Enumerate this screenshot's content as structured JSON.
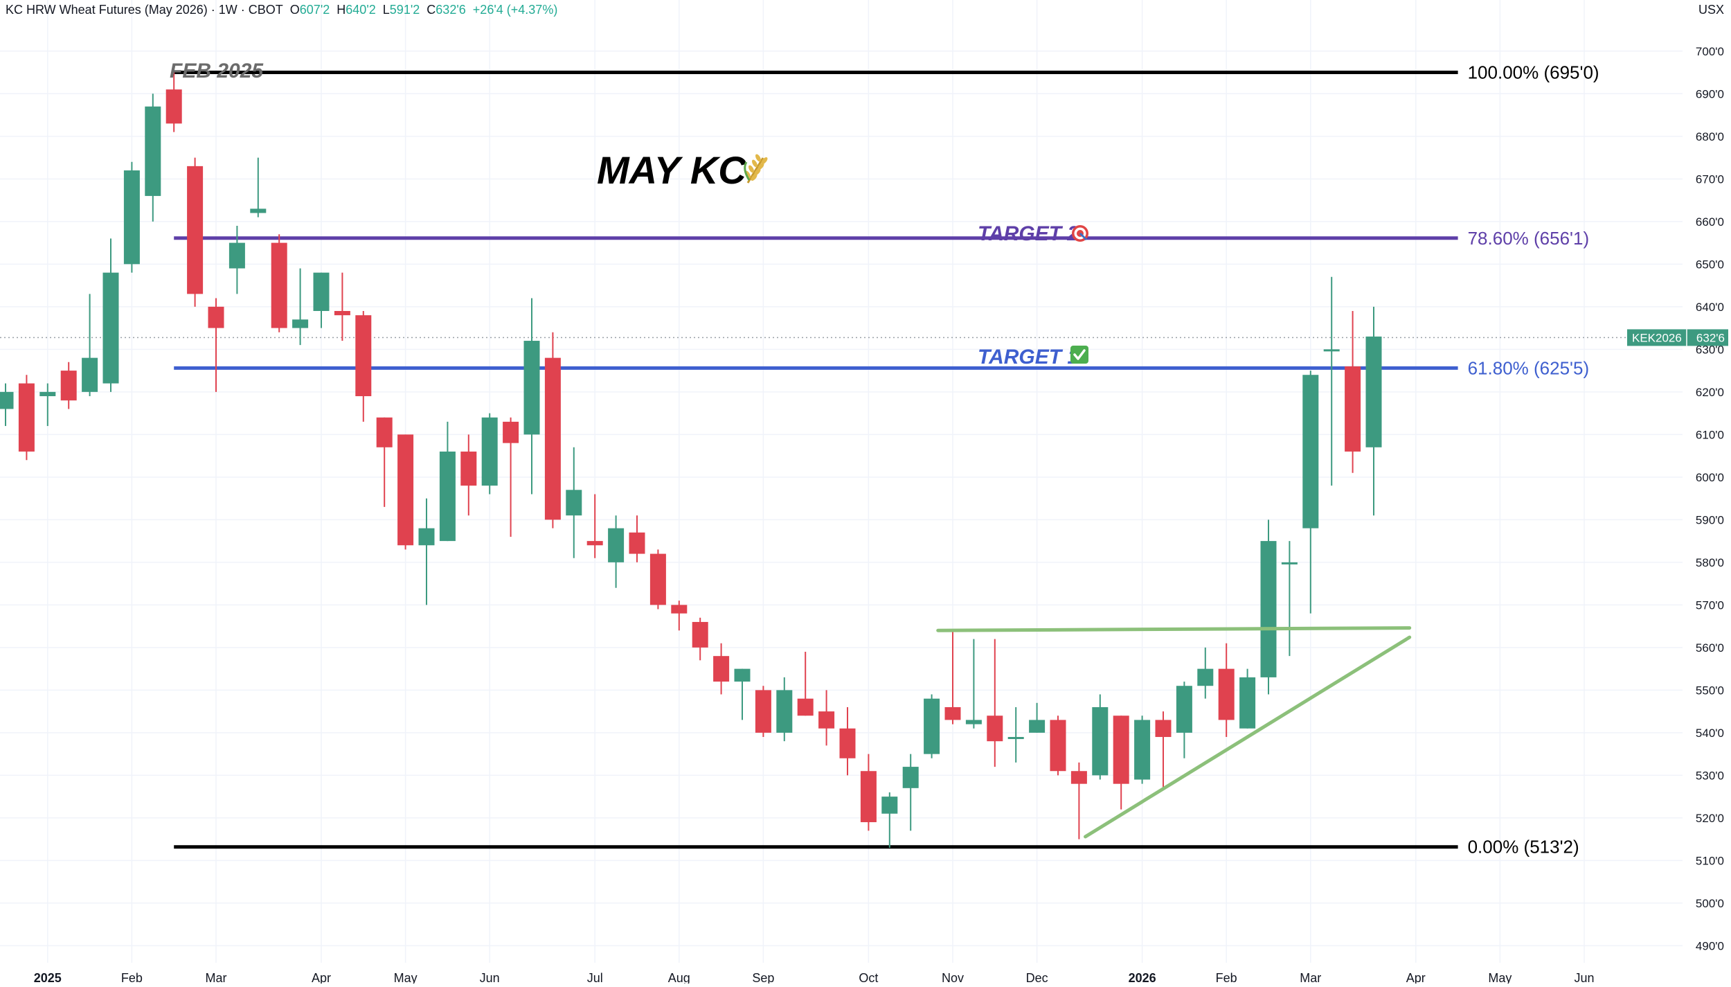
{
  "header": {
    "symbol_title": "KC HRW Wheat Futures (May 2026) · 1W · CBOT",
    "open_label": "O",
    "open": "607'2",
    "high_label": "H",
    "high": "640'2",
    "low_label": "L",
    "low": "591'2",
    "close_label": "C",
    "close": "632'6",
    "change": "+26'4 (+4.37%)",
    "currency": "USX"
  },
  "colors": {
    "up": "#3d9a80",
    "down": "#e0424f",
    "fib_extreme": "#000000",
    "target2": "#5e3fa8",
    "target1": "#3e5fcf",
    "trendline": "#8cc07a",
    "axis_text": "#131722",
    "grid": "#f0f3fa",
    "price_tag": "#3d9a80"
  },
  "chart_data": {
    "type": "candlestick",
    "interval": "1W",
    "ylim": [
      486,
      712
    ],
    "y_ticks": [
      "490'0",
      "500'0",
      "510'0",
      "520'0",
      "530'0",
      "540'0",
      "550'0",
      "560'0",
      "570'0",
      "580'0",
      "590'0",
      "600'0",
      "610'0",
      "620'0",
      "630'0",
      "640'0",
      "650'0",
      "660'0",
      "670'0",
      "680'0",
      "690'0",
      "700'0"
    ],
    "x_ticks": [
      {
        "label": "2025",
        "week": 2
      },
      {
        "label": "Feb",
        "week": 6
      },
      {
        "label": "Mar",
        "week": 10
      },
      {
        "label": "Apr",
        "week": 15
      },
      {
        "label": "May",
        "week": 19
      },
      {
        "label": "Jun",
        "week": 23
      },
      {
        "label": "Jul",
        "week": 28
      },
      {
        "label": "Aug",
        "week": 32
      },
      {
        "label": "Sep",
        "week": 36
      },
      {
        "label": "Oct",
        "week": 41
      },
      {
        "label": "Nov",
        "week": 45
      },
      {
        "label": "Dec",
        "week": 49
      },
      {
        "label": "2026",
        "week": 54
      },
      {
        "label": "Feb",
        "week": 58
      },
      {
        "label": "Mar",
        "week": 62
      },
      {
        "label": "Apr",
        "week": 67
      },
      {
        "label": "May",
        "week": 71
      },
      {
        "label": "Jun",
        "week": 75
      }
    ],
    "week_range": [
      0,
      82
    ],
    "candles": [
      {
        "w": 0,
        "o": 616,
        "h": 622,
        "l": 612,
        "c": 620
      },
      {
        "w": 1,
        "o": 622,
        "h": 624,
        "l": 604,
        "c": 606
      },
      {
        "w": 2,
        "o": 619,
        "h": 622,
        "l": 612,
        "c": 620
      },
      {
        "w": 3,
        "o": 625,
        "h": 627,
        "l": 616,
        "c": 618
      },
      {
        "w": 4,
        "o": 620,
        "h": 643,
        "l": 619,
        "c": 628
      },
      {
        "w": 5,
        "o": 622,
        "h": 656,
        "l": 620,
        "c": 648
      },
      {
        "w": 6,
        "o": 650,
        "h": 674,
        "l": 648,
        "c": 672
      },
      {
        "w": 7,
        "o": 666,
        "h": 690,
        "l": 660,
        "c": 687
      },
      {
        "w": 8,
        "o": 691,
        "h": 695,
        "l": 681,
        "c": 683
      },
      {
        "w": 9,
        "o": 673,
        "h": 675,
        "l": 640,
        "c": 643
      },
      {
        "w": 10,
        "o": 640,
        "h": 642,
        "l": 620,
        "c": 635
      },
      {
        "w": 11,
        "o": 649,
        "h": 659,
        "l": 643,
        "c": 655
      },
      {
        "w": 12,
        "o": 662,
        "h": 675,
        "l": 661,
        "c": 663
      },
      {
        "w": 13,
        "o": 655,
        "h": 657,
        "l": 634,
        "c": 635
      },
      {
        "w": 14,
        "o": 635,
        "h": 649,
        "l": 631,
        "c": 637
      },
      {
        "w": 15,
        "o": 639,
        "h": 648,
        "l": 635,
        "c": 648
      },
      {
        "w": 16,
        "o": 639,
        "h": 648,
        "l": 632,
        "c": 638
      },
      {
        "w": 17,
        "o": 638,
        "h": 639,
        "l": 613,
        "c": 619
      },
      {
        "w": 18,
        "o": 614,
        "h": 614,
        "l": 593,
        "c": 607
      },
      {
        "w": 19,
        "o": 610,
        "h": 610,
        "l": 583,
        "c": 584
      },
      {
        "w": 20,
        "o": 584,
        "h": 595,
        "l": 570,
        "c": 588
      },
      {
        "w": 21,
        "o": 585,
        "h": 613,
        "l": 585,
        "c": 606
      },
      {
        "w": 22,
        "o": 606,
        "h": 610,
        "l": 591,
        "c": 598
      },
      {
        "w": 23,
        "o": 598,
        "h": 615,
        "l": 596,
        "c": 614
      },
      {
        "w": 24,
        "o": 613,
        "h": 614,
        "l": 586,
        "c": 608
      },
      {
        "w": 25,
        "o": 610,
        "h": 642,
        "l": 596,
        "c": 632
      },
      {
        "w": 26,
        "o": 628,
        "h": 634,
        "l": 588,
        "c": 590
      },
      {
        "w": 27,
        "o": 591,
        "h": 607,
        "l": 581,
        "c": 597
      },
      {
        "w": 28,
        "o": 585,
        "h": 596,
        "l": 581,
        "c": 584
      },
      {
        "w": 29,
        "o": 580,
        "h": 591,
        "l": 574,
        "c": 588
      },
      {
        "w": 30,
        "o": 587,
        "h": 591,
        "l": 580,
        "c": 582
      },
      {
        "w": 31,
        "o": 582,
        "h": 583,
        "l": 569,
        "c": 570
      },
      {
        "w": 32,
        "o": 570,
        "h": 571,
        "l": 564,
        "c": 568
      },
      {
        "w": 33,
        "o": 566,
        "h": 567,
        "l": 557,
        "c": 560
      },
      {
        "w": 34,
        "o": 558,
        "h": 561,
        "l": 549,
        "c": 552
      },
      {
        "w": 35,
        "o": 552,
        "h": 555,
        "l": 543,
        "c": 555
      },
      {
        "w": 36,
        "o": 550,
        "h": 551,
        "l": 539,
        "c": 540
      },
      {
        "w": 37,
        "o": 540,
        "h": 553,
        "l": 538,
        "c": 550
      },
      {
        "w": 38,
        "o": 548,
        "h": 559,
        "l": 544,
        "c": 544
      },
      {
        "w": 39,
        "o": 545,
        "h": 550,
        "l": 537,
        "c": 541
      },
      {
        "w": 40,
        "o": 541,
        "h": 546,
        "l": 530,
        "c": 534
      },
      {
        "w": 41,
        "o": 531,
        "h": 535,
        "l": 517,
        "c": 519
      },
      {
        "w": 42,
        "o": 521,
        "h": 526,
        "l": 513,
        "c": 525
      },
      {
        "w": 43,
        "o": 527,
        "h": 535,
        "l": 517,
        "c": 532
      },
      {
        "w": 44,
        "o": 535,
        "h": 549,
        "l": 534,
        "c": 548
      },
      {
        "w": 45,
        "o": 546,
        "h": 564,
        "l": 542,
        "c": 543
      },
      {
        "w": 46,
        "o": 542,
        "h": 562,
        "l": 541,
        "c": 543
      },
      {
        "w": 47,
        "o": 544,
        "h": 562,
        "l": 532,
        "c": 538
      },
      {
        "w": 48,
        "o": 539,
        "h": 546,
        "l": 533,
        "c": 539
      },
      {
        "w": 49,
        "o": 540,
        "h": 547,
        "l": 540,
        "c": 543
      },
      {
        "w": 50,
        "o": 543,
        "h": 544,
        "l": 530,
        "c": 531
      },
      {
        "w": 51,
        "o": 531,
        "h": 533,
        "l": 515,
        "c": 528
      },
      {
        "w": 52,
        "o": 530,
        "h": 549,
        "l": 529,
        "c": 546
      },
      {
        "w": 53,
        "o": 544,
        "h": 544,
        "l": 522,
        "c": 528
      },
      {
        "w": 54,
        "o": 529,
        "h": 544,
        "l": 528,
        "c": 543
      },
      {
        "w": 55,
        "o": 543,
        "h": 545,
        "l": 527,
        "c": 539
      },
      {
        "w": 56,
        "o": 540,
        "h": 552,
        "l": 534,
        "c": 551
      },
      {
        "w": 57,
        "o": 551,
        "h": 560,
        "l": 548,
        "c": 555
      },
      {
        "w": 58,
        "o": 555,
        "h": 561,
        "l": 539,
        "c": 543
      },
      {
        "w": 59,
        "o": 541,
        "h": 555,
        "l": 541,
        "c": 553
      },
      {
        "w": 60,
        "o": 553,
        "h": 590,
        "l": 549,
        "c": 585
      },
      {
        "w": 61,
        "o": 580,
        "h": 585,
        "l": 558,
        "c": 580
      },
      {
        "w": 62,
        "o": 588,
        "h": 625,
        "l": 568,
        "c": 624
      },
      {
        "w": 63,
        "o": 630,
        "h": 647,
        "l": 598,
        "c": 630
      },
      {
        "w": 64,
        "o": 626,
        "h": 639,
        "l": 601,
        "c": 606
      },
      {
        "w": 65,
        "o": 607,
        "h": 640,
        "l": 591,
        "c": 633
      }
    ],
    "levels": [
      {
        "name": "fib-100",
        "price": 695,
        "label": "100.00% (695'0)",
        "color": "#000000",
        "x0": 8,
        "x1": 69
      },
      {
        "name": "fib-786",
        "price": 656.1,
        "label": "78.60% (656'1)",
        "color": "#5e3fa8",
        "x0": 8,
        "x1": 69
      },
      {
        "name": "fib-618",
        "price": 625.6,
        "label": "61.80% (625'5)",
        "color": "#3e5fcf",
        "x0": 8,
        "x1": 69
      },
      {
        "name": "fib-0",
        "price": 513.2,
        "label": "0.00% (513'2)",
        "color": "#000000",
        "x0": 8,
        "x1": 69
      }
    ],
    "trendlines": [
      {
        "name": "resistance-line",
        "x0": 44.3,
        "y0": 564,
        "x1": 66.7,
        "y1": 564.6
      },
      {
        "name": "support-line",
        "x0": 51.3,
        "y0": 515.6,
        "x1": 66.7,
        "y1": 562.4
      }
    ],
    "annotations": {
      "feb_label": "FEB 2025",
      "title": "MAY KC",
      "target2": "TARGET 2",
      "target1": "TARGET 1"
    },
    "last_price": {
      "price": 632.75,
      "symbol": "KEK2026",
      "value": "632'6"
    }
  }
}
